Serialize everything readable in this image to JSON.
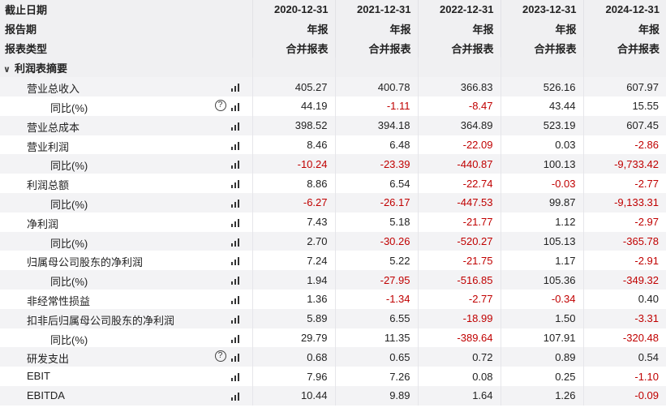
{
  "header": {
    "rows": [
      {
        "label": "截止日期",
        "values": [
          "2020-12-31",
          "2021-12-31",
          "2022-12-31",
          "2023-12-31",
          "2024-12-31"
        ]
      },
      {
        "label": "报告期",
        "values": [
          "年报",
          "年报",
          "年报",
          "年报",
          "年报"
        ]
      },
      {
        "label": "报表类型",
        "values": [
          "合并报表",
          "合并报表",
          "合并报表",
          "合并报表",
          "合并报表"
        ]
      }
    ]
  },
  "section": {
    "caret": "∨",
    "title": "利润表摘要"
  },
  "icons": {
    "chart": "bar-chart-icon",
    "help": "question-circle-icon",
    "help_glyph": "?"
  },
  "colors": {
    "negative": "#c00000",
    "header_bg": "#f0f0f2",
    "alt_bg": "#f3f3f5"
  },
  "rows": [
    {
      "label": "营业总收入",
      "level": 1,
      "help": false,
      "values": [
        "405.27",
        "400.78",
        "366.83",
        "526.16",
        "607.97"
      ]
    },
    {
      "label": "同比(%)",
      "level": 2,
      "help": true,
      "values": [
        "44.19",
        "-1.11",
        "-8.47",
        "43.44",
        "15.55"
      ]
    },
    {
      "label": "营业总成本",
      "level": 1,
      "help": false,
      "values": [
        "398.52",
        "394.18",
        "364.89",
        "523.19",
        "607.45"
      ]
    },
    {
      "label": "营业利润",
      "level": 1,
      "help": false,
      "values": [
        "8.46",
        "6.48",
        "-22.09",
        "0.03",
        "-2.86"
      ]
    },
    {
      "label": "同比(%)",
      "level": 2,
      "help": false,
      "values": [
        "-10.24",
        "-23.39",
        "-440.87",
        "100.13",
        "-9,733.42"
      ]
    },
    {
      "label": "利润总额",
      "level": 1,
      "help": false,
      "values": [
        "8.86",
        "6.54",
        "-22.74",
        "-0.03",
        "-2.77"
      ]
    },
    {
      "label": "同比(%)",
      "level": 2,
      "help": false,
      "values": [
        "-6.27",
        "-26.17",
        "-447.53",
        "99.87",
        "-9,133.31"
      ]
    },
    {
      "label": "净利润",
      "level": 1,
      "help": false,
      "values": [
        "7.43",
        "5.18",
        "-21.77",
        "1.12",
        "-2.97"
      ]
    },
    {
      "label": "同比(%)",
      "level": 2,
      "help": false,
      "values": [
        "2.70",
        "-30.26",
        "-520.27",
        "105.13",
        "-365.78"
      ]
    },
    {
      "label": "归属母公司股东的净利润",
      "level": 1,
      "help": false,
      "values": [
        "7.24",
        "5.22",
        "-21.75",
        "1.17",
        "-2.91"
      ]
    },
    {
      "label": "同比(%)",
      "level": 2,
      "help": false,
      "values": [
        "1.94",
        "-27.95",
        "-516.85",
        "105.36",
        "-349.32"
      ]
    },
    {
      "label": "非经常性损益",
      "level": 1,
      "help": false,
      "values": [
        "1.36",
        "-1.34",
        "-2.77",
        "-0.34",
        "0.40"
      ]
    },
    {
      "label": "扣非后归属母公司股东的净利润",
      "level": 1,
      "help": false,
      "values": [
        "5.89",
        "6.55",
        "-18.99",
        "1.50",
        "-3.31"
      ]
    },
    {
      "label": "同比(%)",
      "level": 2,
      "help": false,
      "values": [
        "29.79",
        "11.35",
        "-389.64",
        "107.91",
        "-320.48"
      ]
    },
    {
      "label": "研发支出",
      "level": 1,
      "help": true,
      "values": [
        "0.68",
        "0.65",
        "0.72",
        "0.89",
        "0.54"
      ]
    },
    {
      "label": "EBIT",
      "level": 1,
      "help": false,
      "values": [
        "7.96",
        "7.26",
        "0.08",
        "0.25",
        "-1.10"
      ]
    },
    {
      "label": "EBITDA",
      "level": 1,
      "help": false,
      "values": [
        "10.44",
        "9.89",
        "1.64",
        "1.26",
        "-0.09"
      ]
    }
  ]
}
